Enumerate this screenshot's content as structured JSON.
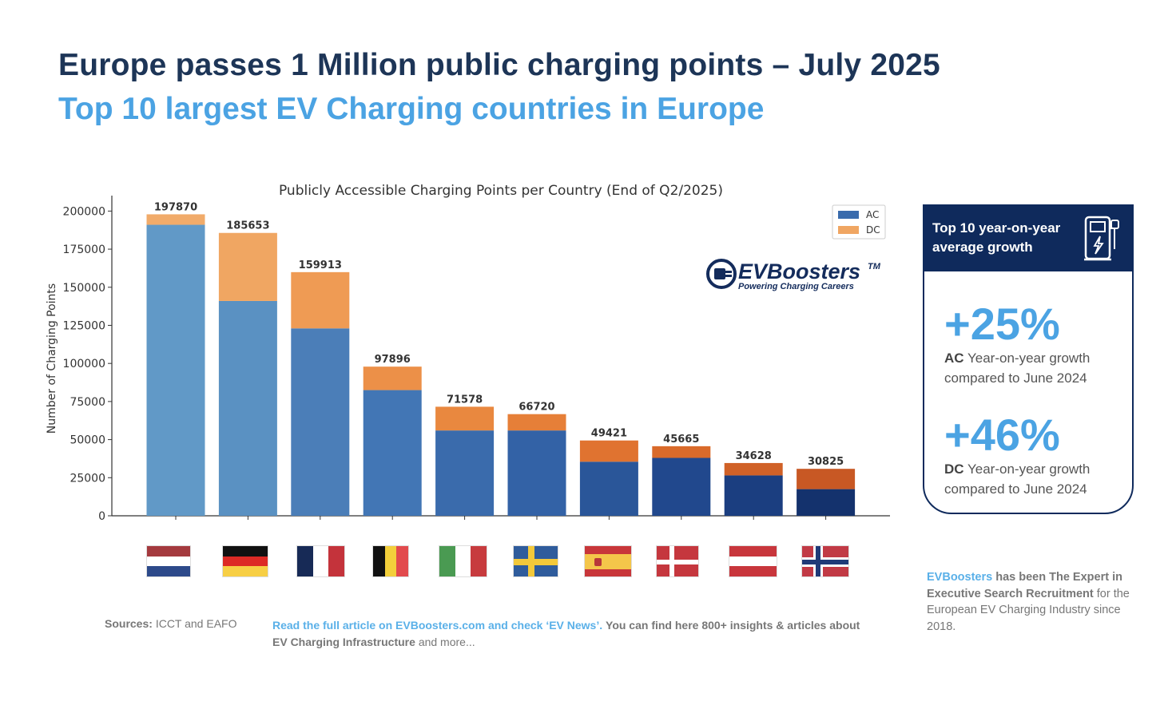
{
  "header": {
    "title": "Europe passes 1 Million public charging points – July 2025",
    "subtitle": "Top 10 largest EV Charging countries in Europe"
  },
  "chart_data": {
    "type": "bar",
    "stacked": true,
    "title": "Publicly Accessible Charging Points per Country (End of Q2/2025)",
    "xlabel": "",
    "ylabel": "Number of Charging Points",
    "ylim": [
      0,
      207000
    ],
    "yticks": [
      0,
      25000,
      50000,
      75000,
      100000,
      125000,
      150000,
      175000,
      200000
    ],
    "categories": [
      "Netherlands",
      "Germany",
      "France",
      "Belgium",
      "Italy",
      "Sweden",
      "Spain",
      "Denmark",
      "Austria",
      "Norway"
    ],
    "series": [
      {
        "name": "AC",
        "values": [
          191000,
          141000,
          123000,
          82500,
          56000,
          56000,
          35500,
          38000,
          26500,
          17500
        ]
      },
      {
        "name": "DC",
        "values": [
          6870,
          44653,
          36913,
          15396,
          15578,
          10720,
          13921,
          7665,
          8128,
          13325
        ]
      }
    ],
    "totals": [
      197870,
      185653,
      159913,
      97896,
      71578,
      66720,
      49421,
      45665,
      34628,
      30825
    ],
    "legend": [
      "AC",
      "DC"
    ],
    "legend_position": "top-right",
    "ac_colors": [
      "#6199c7",
      "#5a91c2",
      "#4b7eb8",
      "#4276b5",
      "#3a6bac",
      "#3362a6",
      "#2a5699",
      "#21488d",
      "#1b3e80",
      "#14326d"
    ],
    "dc_colors": [
      "#f1ab6a",
      "#f0a662",
      "#ef9b54",
      "#ec9048",
      "#e9883f",
      "#e67f38",
      "#e07330",
      "#d96a2a",
      "#d06127",
      "#c85824"
    ]
  },
  "logo": {
    "name": "EVBoosters",
    "tm": "TM",
    "tagline": "Powering Charging Careers"
  },
  "panel": {
    "heading": "Top 10 year-on-year average growth",
    "ac_value": "+25%",
    "ac_label": "AC",
    "ac_desc": "Year-on-year growth compared to June 2024",
    "dc_value": "+46%",
    "dc_label": "DC",
    "dc_desc": "Year-on-year growth compared to June 2024"
  },
  "footer": {
    "sources_label": "Sources:",
    "sources_text": "ICCT and EAFO",
    "article_link": "Read the full article on EVBoosters.com and check ‘EV News’.",
    "article_text": "You can find here 800+ insights & articles about EV Charging Infrastructure",
    "article_tail": "and more...",
    "about_brand": "EVBoosters",
    "about_bold": "has been The Expert in Executive Search Recruitment",
    "about_text": "for the European  EV Charging Industry since 2018."
  }
}
